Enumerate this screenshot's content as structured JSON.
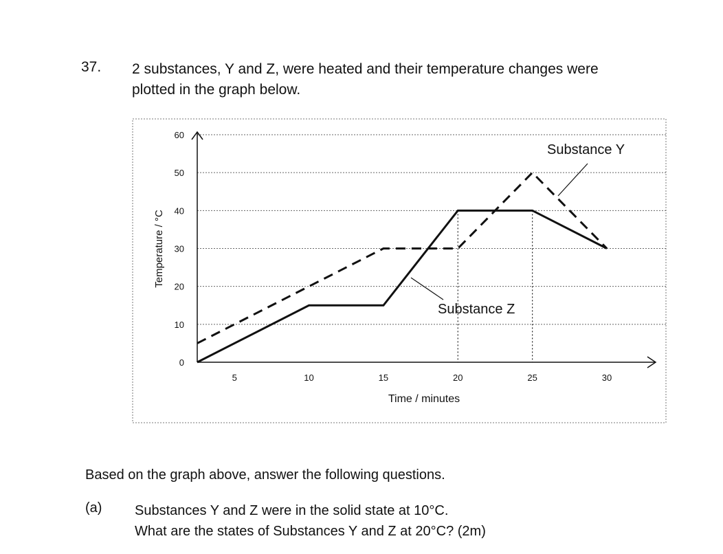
{
  "question": {
    "number": "37.",
    "line1": "2 substances, Y and Z, were heated and their temperature changes were",
    "line2": "plotted in the graph below."
  },
  "chart_data": {
    "type": "line",
    "xlabel": "Time / minutes",
    "ylabel": "Temperature / °C",
    "xticks": [
      5,
      10,
      15,
      20,
      25,
      30
    ],
    "yticks": [
      0,
      10,
      20,
      30,
      40,
      50,
      60
    ],
    "xlim": [
      2.5,
      33
    ],
    "ylim": [
      0,
      60
    ],
    "grid": true,
    "series": [
      {
        "name": "Substance Y",
        "style": "dashed",
        "color": "#111111",
        "x": [
          2.5,
          15,
          20,
          25,
          30
        ],
        "y": [
          5,
          30,
          30,
          50,
          30
        ]
      },
      {
        "name": "Substance Z",
        "style": "solid",
        "color": "#111111",
        "x": [
          2.5,
          10,
          15,
          20,
          25,
          30
        ],
        "y": [
          0,
          15,
          15,
          40,
          40,
          30
        ]
      }
    ],
    "annotations": [
      {
        "text": "Substance Y",
        "series": 0
      },
      {
        "text": "Substance Z",
        "series": 1
      }
    ]
  },
  "instructions": "Based on the graph above, answer the following questions.",
  "part_a": {
    "label": "(a)",
    "line1": "Substances Y and Z were in the solid state at 10°C.",
    "line2": "What are the states of Substances Y and Z at 20°C? (2m)"
  }
}
